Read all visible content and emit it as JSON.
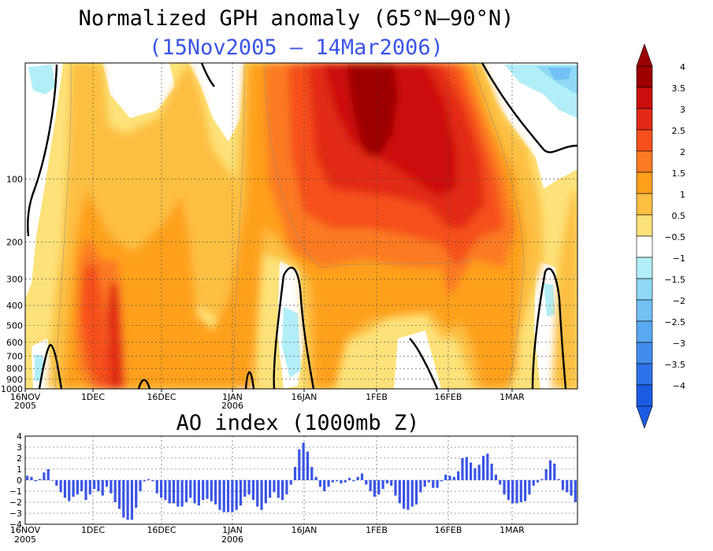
{
  "chart_data": [
    {
      "type": "heatmap",
      "title": "Normalized GPH anomaly (65°N–90°N)",
      "subtitle": "(15Nov2005 – 14Mar2006)",
      "ylabel": "",
      "y_scale": "log-pressure",
      "y_ticks": [
        "100",
        "200",
        "300",
        "400",
        "500",
        "600",
        "700",
        "800",
        "900",
        "1000"
      ],
      "x_ticks": [
        {
          "label": "16NOV",
          "year": "2005"
        },
        {
          "label": "1DEC",
          "year": ""
        },
        {
          "label": "16DEC",
          "year": ""
        },
        {
          "label": "1JAN",
          "year": "2006"
        },
        {
          "label": "16JAN",
          "year": ""
        },
        {
          "label": "1FEB",
          "year": ""
        },
        {
          "label": "16FEB",
          "year": ""
        },
        {
          "label": "1MAR",
          "year": ""
        }
      ],
      "colorbar": {
        "labels": [
          "4",
          "3.5",
          "3",
          "2.5",
          "2",
          "1.5",
          "1",
          "0.5",
          "−0.5",
          "−1",
          "−1.5",
          "−2",
          "−2.5",
          "−3",
          "−3.5",
          "−4"
        ],
        "colors": [
          "#9c0000",
          "#cc0d0d",
          "#e22a16",
          "#f5501e",
          "#fb7a22",
          "#fea01c",
          "#fcbf42",
          "#fde27a",
          "#ffffff",
          "#b2eef8",
          "#8fd8f6",
          "#72c0f4",
          "#58a8f2",
          "#428cee",
          "#2e72ea",
          "#1c5ae4"
        ]
      }
    },
    {
      "type": "bar",
      "title": "AO index (1000mb Z)",
      "ylim": [
        -4,
        4
      ],
      "y_ticks": [
        "4",
        "3",
        "2",
        "1",
        "0",
        "−1",
        "−2",
        "−3",
        "−4"
      ],
      "bar_color": "#3a55e6",
      "x_ticks": [
        {
          "label": "16NOV",
          "year": "2005"
        },
        {
          "label": "1DEC",
          "year": ""
        },
        {
          "label": "16DEC",
          "year": ""
        },
        {
          "label": "1JAN",
          "year": "2006"
        },
        {
          "label": "16JAN",
          "year": ""
        },
        {
          "label": "1FEB",
          "year": ""
        },
        {
          "label": "16FEB",
          "year": ""
        },
        {
          "label": "1MAR",
          "year": ""
        }
      ],
      "x_start": "2005-11-15",
      "values": [
        0.4,
        0.3,
        -0.1,
        0.1,
        0.7,
        1.0,
        0.0,
        -0.5,
        -1.1,
        -1.6,
        -1.9,
        -1.5,
        -1.3,
        -1.0,
        -1.8,
        -1.3,
        -0.8,
        -1.0,
        -1.4,
        -0.6,
        -1.2,
        -2.0,
        -2.6,
        -3.4,
        -3.6,
        -3.6,
        -2.5,
        -1.0,
        -0.1,
        0.1,
        -0.1,
        -1.2,
        -1.6,
        -1.8,
        -2.1,
        -2.1,
        -2.4,
        -2.4,
        -2.0,
        -1.6,
        -2.1,
        -2.3,
        -1.8,
        -1.7,
        -1.9,
        -2.2,
        -2.7,
        -2.9,
        -2.9,
        -2.9,
        -2.7,
        -2.3,
        -1.5,
        -1.3,
        -1.8,
        -2.4,
        -2.7,
        -2.1,
        -1.6,
        -1.1,
        -1.6,
        -1.8,
        -1.3,
        -0.4,
        1.2,
        2.8,
        3.4,
        2.6,
        1.2,
        0.3,
        -0.6,
        -1.0,
        -0.6,
        -0.2,
        -0.1,
        -0.3,
        -0.2,
        0.2,
        -0.1,
        0.3,
        0.6,
        -0.4,
        -1.0,
        -1.5,
        -1.3,
        -0.8,
        -0.3,
        -0.5,
        -1.4,
        -2.1,
        -2.6,
        -2.7,
        -2.4,
        -2.2,
        -1.1,
        -0.6,
        -0.2,
        -0.7,
        -0.7,
        -0.1,
        0.5,
        0.4,
        0.3,
        0.8,
        2.0,
        2.1,
        1.6,
        1.1,
        1.4,
        2.2,
        2.4,
        1.5,
        0.5,
        -0.4,
        -1.3,
        -1.8,
        -2.1,
        -2.1,
        -2.0,
        -1.9,
        -1.3,
        -0.5,
        -0.2,
        0.1,
        1.0,
        1.8,
        1.5,
        0.1,
        -0.9,
        -1.1,
        -1.4,
        -2.0
      ]
    }
  ]
}
